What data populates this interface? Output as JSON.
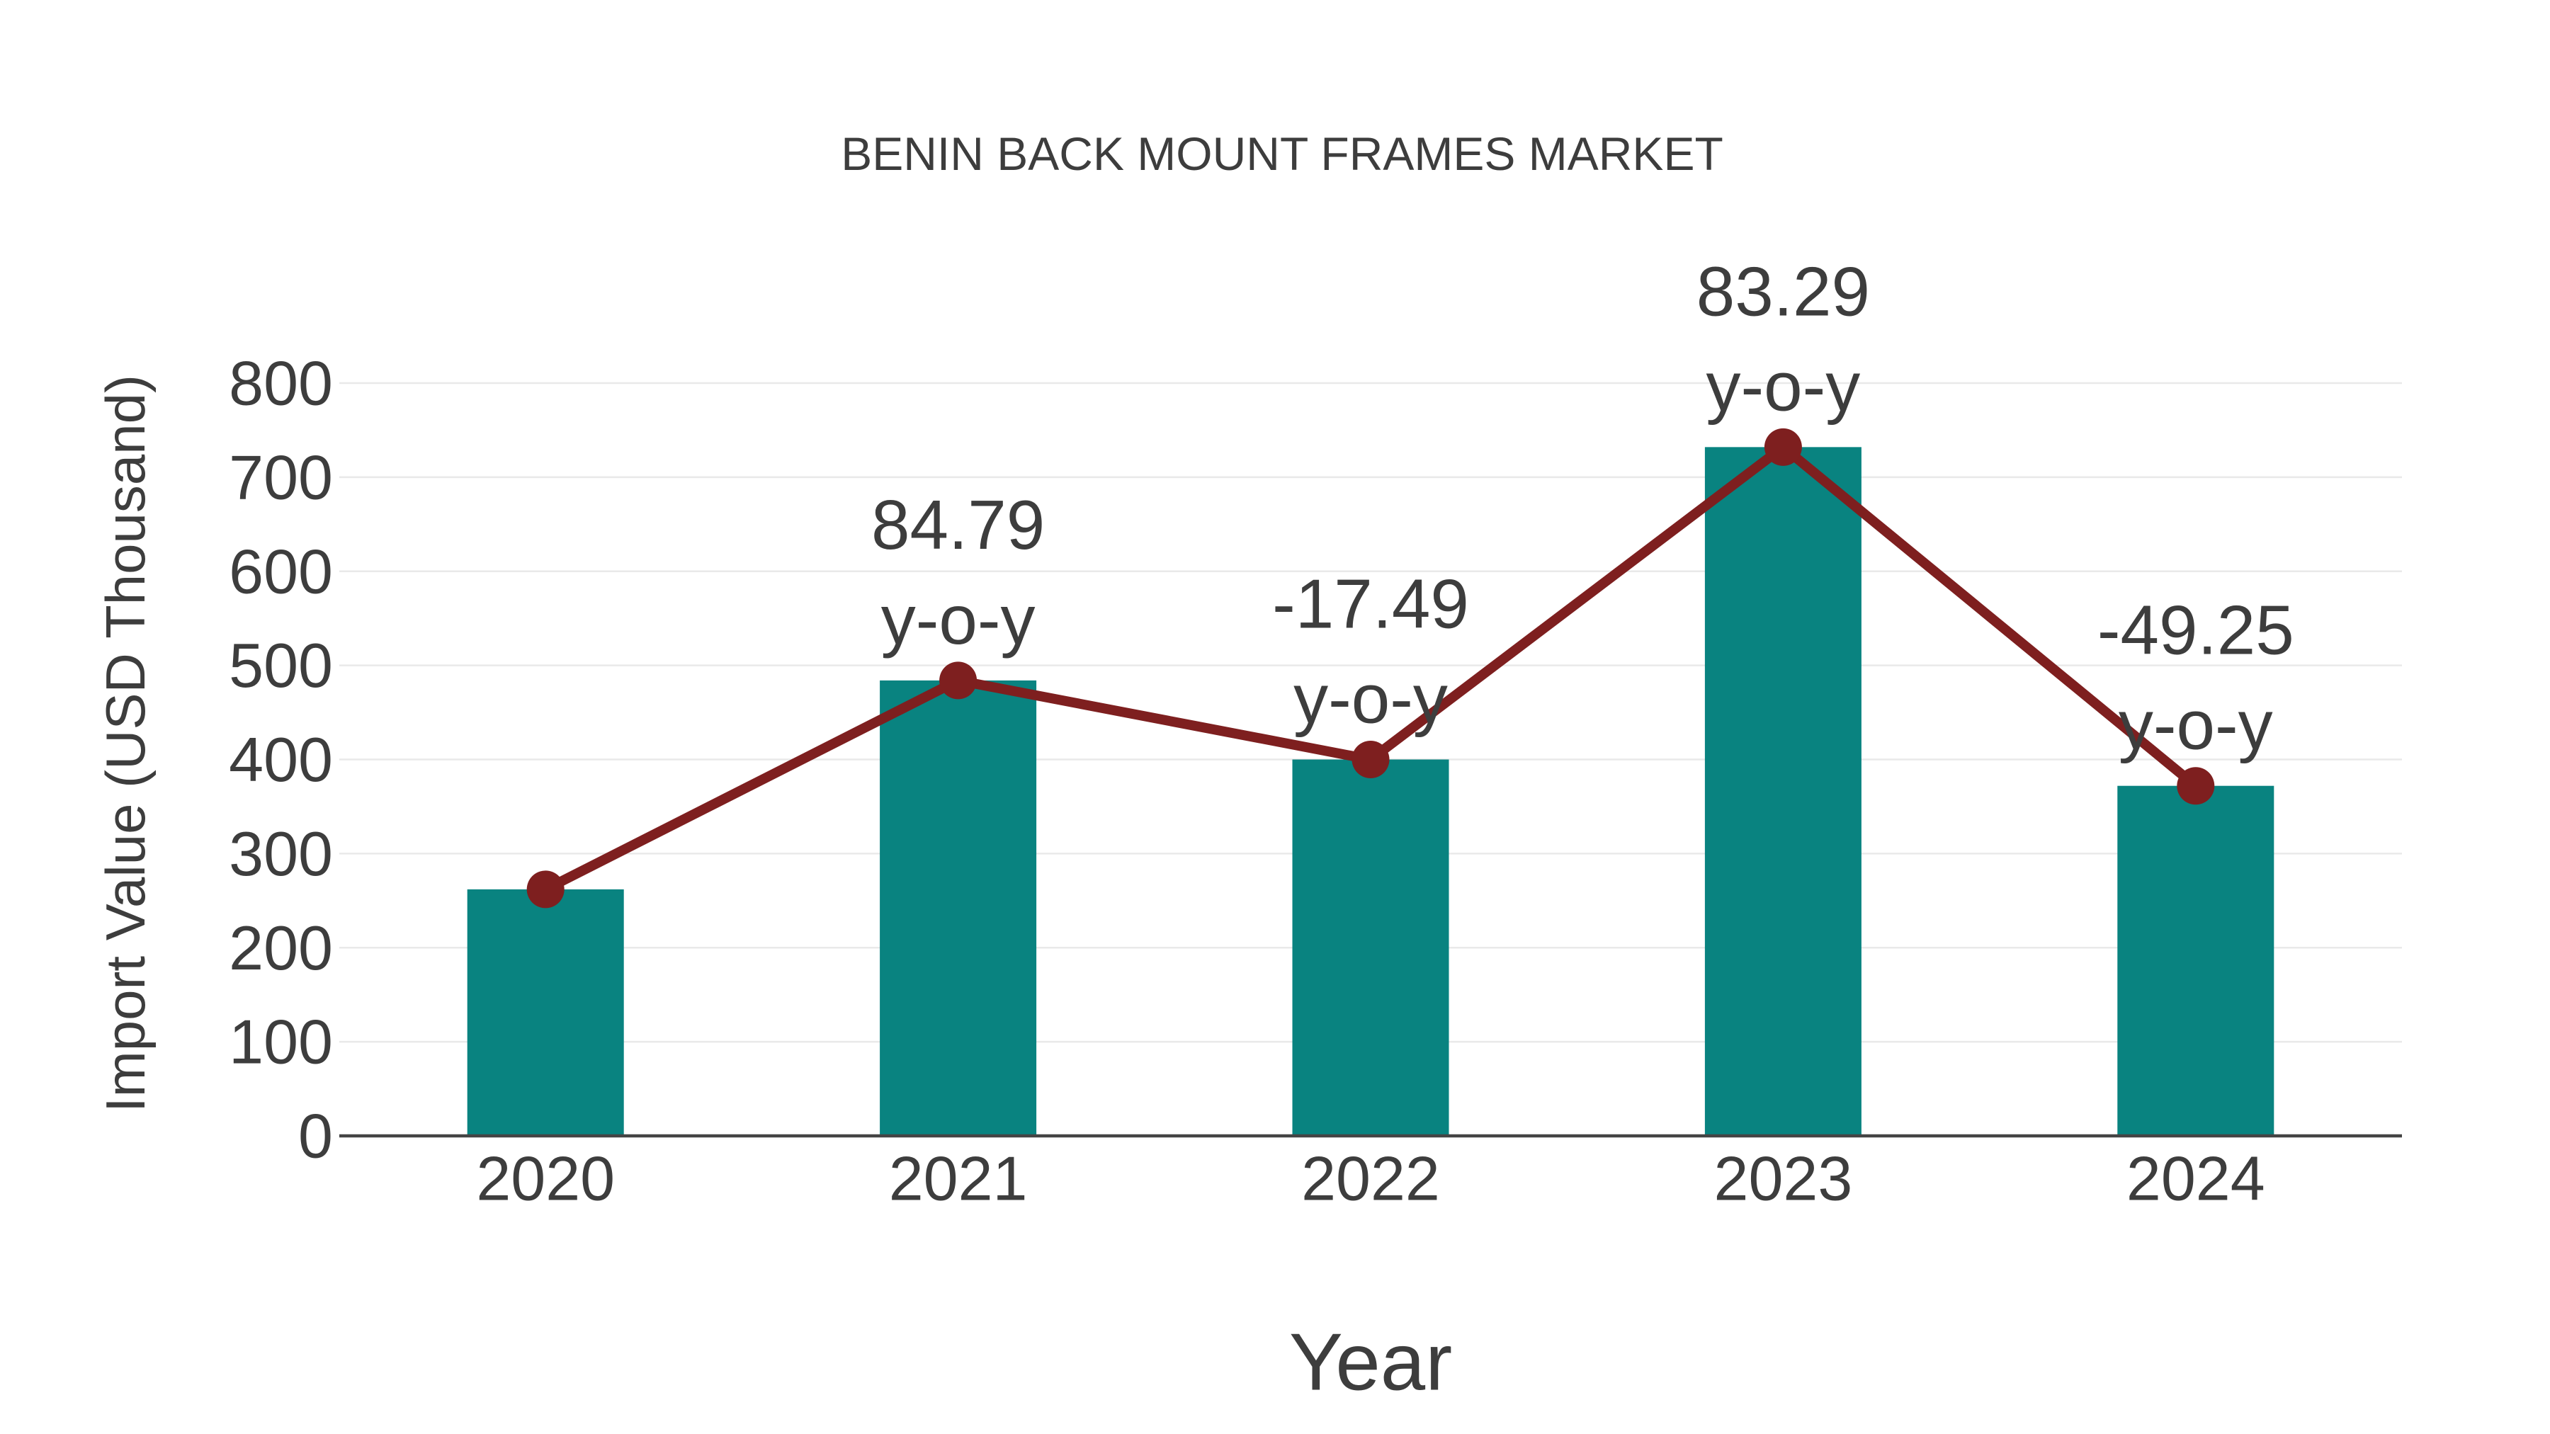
{
  "page": {
    "background": "#ffffff"
  },
  "chart_data": {
    "type": "bar",
    "title": "BENIN BACK MOUNT FRAMES MARKET",
    "xlabel": "Year",
    "ylabel": "Import Value (USD Thousand)",
    "categories": [
      "2020",
      "2021",
      "2022",
      "2023",
      "2024"
    ],
    "series": [
      {
        "name": "import-value-bars",
        "type": "bar",
        "values": [
          262,
          484,
          400,
          732,
          372
        ]
      },
      {
        "name": "import-value-line",
        "type": "line",
        "values": [
          262,
          484,
          400,
          732,
          372
        ]
      }
    ],
    "annotations": [
      {
        "category": "2021",
        "value_text": "84.79",
        "suffix_text": "y-o-y"
      },
      {
        "category": "2022",
        "value_text": "-17.49",
        "suffix_text": "y-o-y"
      },
      {
        "category": "2023",
        "value_text": "83.29",
        "suffix_text": "y-o-y"
      },
      {
        "category": "2024",
        "value_text": "-49.25",
        "suffix_text": "y-o-y"
      }
    ],
    "yticks": [
      0,
      100,
      200,
      300,
      400,
      500,
      600,
      700,
      800
    ],
    "ylim": [
      0,
      800
    ],
    "grid": true,
    "legend": false,
    "colors": {
      "bar": "#098380",
      "line": "#7e1f1f",
      "marker": "#7e1f1f",
      "text": "#3d3d3d",
      "grid": "#e9e9e9",
      "axis": "#444444",
      "background": "#ffffff"
    }
  }
}
